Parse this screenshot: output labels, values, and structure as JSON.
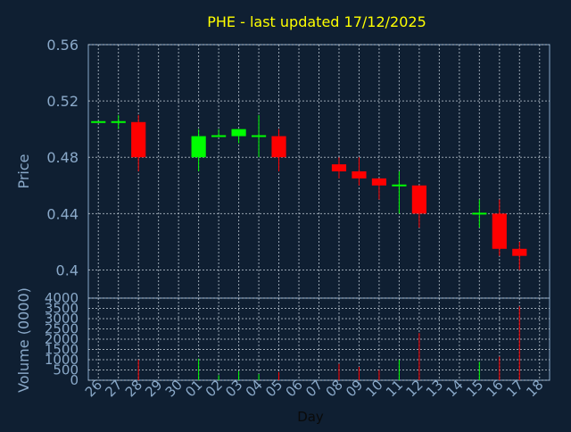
{
  "title": "PHE - last updated 17/12/2025",
  "colors": {
    "background": "#0f1f32",
    "title": "#ffff00",
    "axis_text": "#8aa9c9",
    "axis_line": "#8aa9c9",
    "grid": "#c8d2dc",
    "up": "#00ff00",
    "down": "#ff0000"
  },
  "chart_data": [
    {
      "type": "candlestick",
      "title": "PHE - last updated 17/12/2025",
      "ylabel": "Price",
      "ylim": [
        0.38,
        0.56
      ],
      "yticks": [
        "0.56",
        "0.52",
        "0.48",
        "0.44",
        "0.4"
      ],
      "grid": true,
      "x": [
        "26",
        "27",
        "28",
        "29",
        "30",
        "01",
        "02",
        "03",
        "04",
        "05",
        "06",
        "07",
        "08",
        "09",
        "10",
        "11",
        "12",
        "13",
        "14",
        "15",
        "16",
        "17",
        "18"
      ],
      "candles": [
        {
          "day": "26",
          "open": 0.505,
          "high": 0.505,
          "low": 0.505,
          "close": 0.505
        },
        {
          "day": "27",
          "open": 0.505,
          "high": 0.51,
          "low": 0.5,
          "close": 0.505
        },
        {
          "day": "28",
          "open": 0.505,
          "high": 0.51,
          "low": 0.47,
          "close": 0.48
        },
        {
          "day": "01",
          "open": 0.48,
          "high": 0.5,
          "low": 0.47,
          "close": 0.495
        },
        {
          "day": "02",
          "open": 0.495,
          "high": 0.5,
          "low": 0.495,
          "close": 0.495
        },
        {
          "day": "03",
          "open": 0.495,
          "high": 0.5,
          "low": 0.49,
          "close": 0.5
        },
        {
          "day": "04",
          "open": 0.495,
          "high": 0.51,
          "low": 0.48,
          "close": 0.495
        },
        {
          "day": "05",
          "open": 0.495,
          "high": 0.5,
          "low": 0.47,
          "close": 0.48
        },
        {
          "day": "08",
          "open": 0.475,
          "high": 0.48,
          "low": 0.465,
          "close": 0.47
        },
        {
          "day": "09",
          "open": 0.47,
          "high": 0.48,
          "low": 0.46,
          "close": 0.465
        },
        {
          "day": "10",
          "open": 0.465,
          "high": 0.465,
          "low": 0.45,
          "close": 0.46
        },
        {
          "day": "11",
          "open": 0.46,
          "high": 0.47,
          "low": 0.44,
          "close": 0.46
        },
        {
          "day": "12",
          "open": 0.46,
          "high": 0.46,
          "low": 0.43,
          "close": 0.44
        },
        {
          "day": "15",
          "open": 0.44,
          "high": 0.45,
          "low": 0.43,
          "close": 0.44
        },
        {
          "day": "16",
          "open": 0.44,
          "high": 0.45,
          "low": 0.41,
          "close": 0.415
        },
        {
          "day": "17",
          "open": 0.415,
          "high": 0.42,
          "low": 0.4,
          "close": 0.41
        }
      ]
    },
    {
      "type": "bar",
      "ylabel": "Volume (0000)",
      "xlabel": "Day",
      "ylim": [
        0,
        4000
      ],
      "yticks": [
        "4000",
        "3500",
        "3000",
        "2500",
        "2000",
        "1500",
        "1000",
        "500",
        "0"
      ],
      "grid": true,
      "x": [
        "26",
        "27",
        "28",
        "29",
        "30",
        "01",
        "02",
        "03",
        "04",
        "05",
        "06",
        "07",
        "08",
        "09",
        "10",
        "11",
        "12",
        "13",
        "14",
        "15",
        "16",
        "17",
        "18"
      ],
      "bars": [
        {
          "day": "28",
          "value": 1000,
          "direction": "down"
        },
        {
          "day": "01",
          "value": 1050,
          "direction": "up"
        },
        {
          "day": "02",
          "value": 250,
          "direction": "up"
        },
        {
          "day": "03",
          "value": 450,
          "direction": "up"
        },
        {
          "day": "04",
          "value": 300,
          "direction": "up"
        },
        {
          "day": "05",
          "value": 400,
          "direction": "down"
        },
        {
          "day": "08",
          "value": 800,
          "direction": "down"
        },
        {
          "day": "09",
          "value": 650,
          "direction": "down"
        },
        {
          "day": "10",
          "value": 500,
          "direction": "down"
        },
        {
          "day": "11",
          "value": 1000,
          "direction": "up"
        },
        {
          "day": "12",
          "value": 2300,
          "direction": "down"
        },
        {
          "day": "15",
          "value": 900,
          "direction": "up"
        },
        {
          "day": "16",
          "value": 1150,
          "direction": "down"
        },
        {
          "day": "17",
          "value": 3600,
          "direction": "down"
        }
      ]
    }
  ]
}
